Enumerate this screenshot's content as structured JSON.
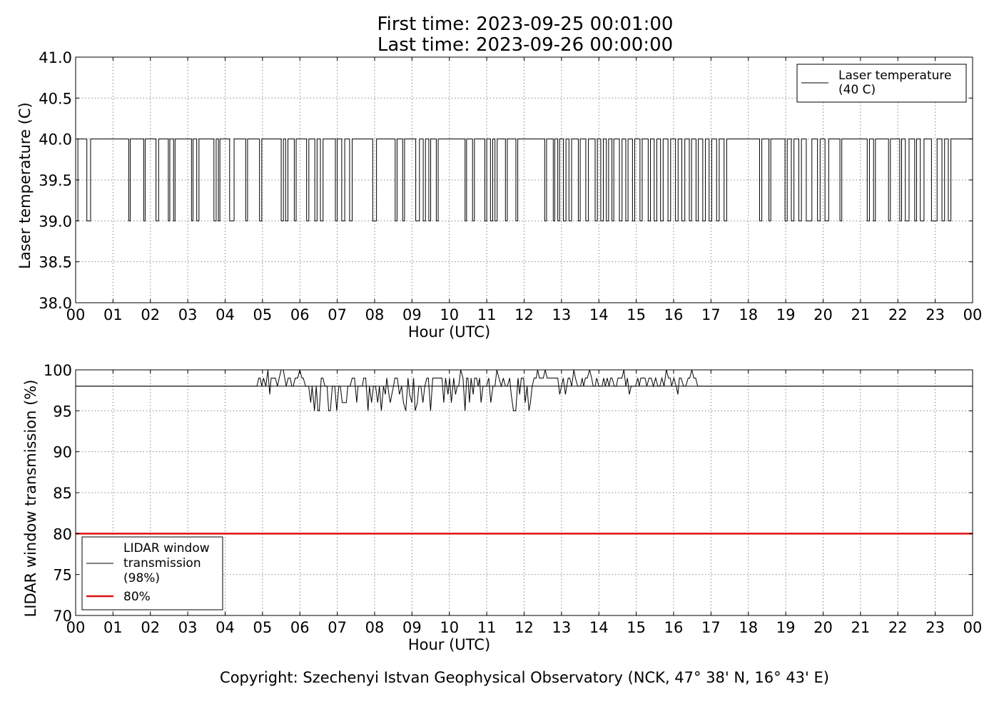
{
  "header": {
    "title_line1": "First time: 2023-09-25 00:01:00",
    "title_line2": "Last time: 2023-09-26 00:00:00"
  },
  "footer": {
    "copyright": "Copyright: Szechenyi Istvan Geophysical Observatory (NCK, 47° 38' N, 16° 43' E)"
  },
  "colors": {
    "series_line": "#000000",
    "threshold_line": "#dd1111",
    "grid": "#888888"
  },
  "chart_data": [
    {
      "type": "line",
      "xlabel": "Hour (UTC)",
      "ylabel": "Laser temperature (C)",
      "xlim": [
        0,
        24
      ],
      "ylim": [
        38.0,
        41.0
      ],
      "x_tick_labels": [
        "00",
        "01",
        "02",
        "03",
        "04",
        "05",
        "06",
        "07",
        "08",
        "09",
        "10",
        "11",
        "12",
        "13",
        "14",
        "15",
        "16",
        "17",
        "18",
        "19",
        "20",
        "21",
        "22",
        "23",
        "00"
      ],
      "y_ticks": [
        38.0,
        38.5,
        39.0,
        39.5,
        40.0,
        40.5,
        41.0
      ],
      "y_tick_labels": [
        "38.0",
        "38.5",
        "39.0",
        "39.5",
        "40.0",
        "40.5",
        "41.0"
      ],
      "grid": true,
      "legend_position": "top-right",
      "series": [
        {
          "name": "Laser temperature\n(40 C)",
          "baseline": 40.0,
          "dip_value": 39.0,
          "dips_hours": [
            [
              0.0,
              0.06
            ],
            [
              0.3,
              0.4
            ],
            [
              1.42,
              1.46
            ],
            [
              1.82,
              1.86
            ],
            [
              2.15,
              2.22
            ],
            [
              2.48,
              2.52
            ],
            [
              2.62,
              2.66
            ],
            [
              3.1,
              3.14
            ],
            [
              3.24,
              3.3
            ],
            [
              3.7,
              3.76
            ],
            [
              3.82,
              3.86
            ],
            [
              4.12,
              4.24
            ],
            [
              4.55,
              4.6
            ],
            [
              4.92,
              4.98
            ],
            [
              5.5,
              5.56
            ],
            [
              5.62,
              5.68
            ],
            [
              5.85,
              5.9
            ],
            [
              6.18,
              6.24
            ],
            [
              6.4,
              6.46
            ],
            [
              6.55,
              6.62
            ],
            [
              6.95,
              7.0
            ],
            [
              7.12,
              7.2
            ],
            [
              7.33,
              7.4
            ],
            [
              7.95,
              8.05
            ],
            [
              8.55,
              8.6
            ],
            [
              8.75,
              8.8
            ],
            [
              9.1,
              9.2
            ],
            [
              9.3,
              9.36
            ],
            [
              9.45,
              9.5
            ],
            [
              9.65,
              9.7
            ],
            [
              10.42,
              10.46
            ],
            [
              10.62,
              10.67
            ],
            [
              10.95,
              11.0
            ],
            [
              11.1,
              11.16
            ],
            [
              11.22,
              11.28
            ],
            [
              11.5,
              11.55
            ],
            [
              11.78,
              11.83
            ],
            [
              12.55,
              12.6
            ],
            [
              12.78,
              12.82
            ],
            [
              12.9,
              12.95
            ],
            [
              13.05,
              13.12
            ],
            [
              13.2,
              13.27
            ],
            [
              13.45,
              13.5
            ],
            [
              13.65,
              13.72
            ],
            [
              13.9,
              13.96
            ],
            [
              14.05,
              14.12
            ],
            [
              14.2,
              14.26
            ],
            [
              14.35,
              14.4
            ],
            [
              14.55,
              14.62
            ],
            [
              14.72,
              14.78
            ],
            [
              14.9,
              14.96
            ],
            [
              15.1,
              15.16
            ],
            [
              15.32,
              15.38
            ],
            [
              15.48,
              15.55
            ],
            [
              15.65,
              15.72
            ],
            [
              15.85,
              15.92
            ],
            [
              16.05,
              16.12
            ],
            [
              16.22,
              16.3
            ],
            [
              16.42,
              16.48
            ],
            [
              16.6,
              16.66
            ],
            [
              16.78,
              16.85
            ],
            [
              16.95,
              17.02
            ],
            [
              17.15,
              17.22
            ],
            [
              17.35,
              17.42
            ],
            [
              18.3,
              18.36
            ],
            [
              18.55,
              18.6
            ],
            [
              18.98,
              19.04
            ],
            [
              19.15,
              19.22
            ],
            [
              19.35,
              19.42
            ],
            [
              19.55,
              19.7
            ],
            [
              19.85,
              19.92
            ],
            [
              20.05,
              20.15
            ],
            [
              20.45,
              20.5
            ],
            [
              21.18,
              21.24
            ],
            [
              21.35,
              21.4
            ],
            [
              21.75,
              21.8
            ],
            [
              22.05,
              22.1
            ],
            [
              22.2,
              22.3
            ],
            [
              22.45,
              22.5
            ],
            [
              22.6,
              22.7
            ],
            [
              22.9,
              23.05
            ],
            [
              23.18,
              23.25
            ],
            [
              23.35,
              23.42
            ]
          ]
        }
      ]
    },
    {
      "type": "line",
      "xlabel": "Hour (UTC)",
      "ylabel": "LIDAR window transmission (%)",
      "xlim": [
        0,
        24
      ],
      "ylim": [
        70,
        100
      ],
      "x_tick_labels": [
        "00",
        "01",
        "02",
        "03",
        "04",
        "05",
        "06",
        "07",
        "08",
        "09",
        "10",
        "11",
        "12",
        "13",
        "14",
        "15",
        "16",
        "17",
        "18",
        "19",
        "20",
        "21",
        "22",
        "23",
        "00"
      ],
      "y_ticks": [
        70,
        75,
        80,
        85,
        90,
        95,
        100
      ],
      "y_tick_labels": [
        "70",
        "75",
        "80",
        "85",
        "90",
        "95",
        "100"
      ],
      "grid": true,
      "legend_position": "lower-left",
      "series": [
        {
          "name": "LIDAR window\ntransmission\n(98%)",
          "baseline": 98,
          "active_range_hours": [
            4.85,
            16.75
          ],
          "typical_range": [
            95,
            100
          ]
        },
        {
          "name": "80%",
          "value": 80
        }
      ]
    }
  ]
}
